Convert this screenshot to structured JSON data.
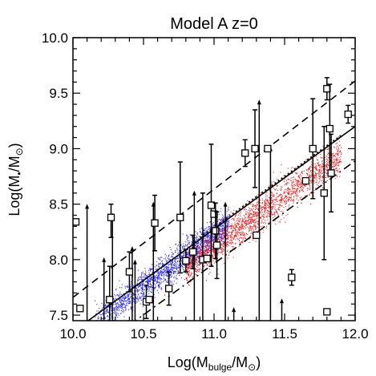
{
  "chart_data": {
    "type": "scatter",
    "title": "Model A z=0",
    "xlabel": {
      "main": "Log(M",
      "sub": "bulge",
      "mid": "/M",
      "sun": "⊙",
      "end": ")"
    },
    "ylabel": {
      "main": "Log(M",
      "sub": "•",
      "mid": "/M",
      "sun": "⊙",
      "end": ")"
    },
    "xlim": [
      10.0,
      12.0
    ],
    "ylim": [
      7.45,
      10.0
    ],
    "xticks": [
      10.0,
      10.5,
      11.0,
      11.5,
      12.0
    ],
    "xtick_labels": [
      "10.0",
      "10.5",
      "11.0",
      "11.5",
      "12.0"
    ],
    "yticks": [
      7.5,
      8.0,
      8.5,
      9.0,
      9.5,
      10.0
    ],
    "ytick_labels": [
      "7.5",
      "8.0",
      "8.5",
      "9.0",
      "9.5",
      "10.0"
    ],
    "colors": {
      "blue": "#2a2af0",
      "red": "#f01e1e",
      "black": "#000000"
    },
    "model_clouds": [
      {
        "color": "blue",
        "x_range": [
          10.15,
          11.1
        ],
        "relation": {
          "slope": 0.92,
          "intercept_at_10": 7.3
        },
        "scatter": 0.07
      },
      {
        "color": "red",
        "x_range": [
          10.8,
          11.9
        ],
        "relation": {
          "slope": 0.92,
          "intercept_at_10": 7.2
        },
        "scatter": 0.08
      }
    ],
    "fit_lines": [
      {
        "style": "solid",
        "x": [
          10.0,
          12.0
        ],
        "y": [
          7.35,
          9.2
        ]
      },
      {
        "style": "dashed",
        "x": [
          10.0,
          12.0
        ],
        "y": [
          7.66,
          9.61
        ]
      },
      {
        "style": "dash-dot",
        "x": [
          10.0,
          12.0
        ],
        "y": [
          7.04,
          8.89
        ]
      },
      {
        "style": "dotted",
        "x": [
          10.9,
          11.9
        ],
        "y": [
          8.2,
          9.12
        ]
      }
    ],
    "observed_points": [
      {
        "x": 10.02,
        "y": 8.34
      },
      {
        "x": 10.05,
        "y": 7.56
      },
      {
        "x": 10.27,
        "y": 8.38,
        "err": [
          0.18,
          0.12
        ]
      },
      {
        "x": 10.26,
        "y": 7.64,
        "err": [
          0.2,
          0.3
        ]
      },
      {
        "x": 10.4,
        "y": 7.89,
        "err": [
          0.18,
          0.18
        ]
      },
      {
        "x": 10.52,
        "y": 7.62,
        "err": [
          0.15,
          0.15
        ]
      },
      {
        "x": 10.54,
        "y": 7.64
      },
      {
        "x": 10.58,
        "y": 8.33,
        "err": [
          0.25,
          0.25
        ]
      },
      {
        "x": 10.68,
        "y": 7.74,
        "err": [
          0.15,
          0.15
        ]
      },
      {
        "x": 10.76,
        "y": 8.38,
        "err": [
          0.5,
          0.5
        ]
      },
      {
        "x": 10.8,
        "y": 7.99,
        "err": [
          0.1,
          0.1
        ]
      },
      {
        "x": 10.85,
        "y": 8.07,
        "err": [
          0.15,
          0.15
        ]
      },
      {
        "x": 10.92,
        "y": 8.0,
        "err": [
          0.6,
          0.6
        ]
      },
      {
        "x": 10.95,
        "y": 8.01
      },
      {
        "x": 10.98,
        "y": 8.49,
        "err": [
          0.55,
          0.55
        ]
      },
      {
        "x": 11.0,
        "y": 8.41
      },
      {
        "x": 11.01,
        "y": 8.26,
        "err": [
          0.25,
          0.25
        ]
      },
      {
        "x": 11.02,
        "y": 8.13,
        "err": [
          0.3,
          0.3
        ]
      },
      {
        "x": 11.22,
        "y": 8.96,
        "err": [
          0.12,
          0.12
        ]
      },
      {
        "x": 11.29,
        "y": 9.0,
        "err": [
          0.35,
          0.35
        ]
      },
      {
        "x": 11.3,
        "y": 8.22
      },
      {
        "x": 11.38,
        "y": 9.0
      },
      {
        "x": 11.55,
        "y": 7.84,
        "err": [
          0.07,
          0.07
        ]
      },
      {
        "x": 11.65,
        "y": 8.71
      },
      {
        "x": 11.7,
        "y": 9.0,
        "err": [
          0.45,
          0.45
        ]
      },
      {
        "x": 11.78,
        "y": 8.6,
        "err": [
          0.6,
          0.6
        ]
      },
      {
        "x": 11.8,
        "y": 9.54,
        "err": [
          0.1,
          0.1
        ]
      },
      {
        "x": 11.82,
        "y": 9.18,
        "err": [
          0.4,
          0.4
        ]
      },
      {
        "x": 11.83,
        "y": 8.78,
        "err": [
          0.35,
          0.35
        ]
      },
      {
        "x": 11.8,
        "y": 7.53
      },
      {
        "x": 11.95,
        "y": 9.31,
        "err": [
          0.08,
          0.08
        ]
      }
    ],
    "upper_limits": [
      {
        "x": 10.1,
        "y": 8.48,
        "down_to": 7.45
      },
      {
        "x": 10.22,
        "y": 8.0,
        "down_to": 7.45
      },
      {
        "x": 10.28,
        "y": 8.4,
        "down_to": 7.45
      },
      {
        "x": 10.42,
        "y": 8.1,
        "down_to": 7.45
      },
      {
        "x": 10.44,
        "y": 7.98,
        "down_to": 7.45
      },
      {
        "x": 10.57,
        "y": 8.5,
        "down_to": 7.45
      },
      {
        "x": 10.86,
        "y": 8.6,
        "down_to": 7.45
      },
      {
        "x": 11.08,
        "y": 8.5,
        "down_to": 7.45
      },
      {
        "x": 11.14,
        "y": 7.55,
        "down_to": 7.45
      },
      {
        "x": 11.32,
        "y": 9.42,
        "down_to": 7.45
      },
      {
        "x": 11.4,
        "y": 9.0,
        "down_to": 7.45
      },
      {
        "x": 11.48,
        "y": 7.63,
        "down_to": 7.45
      }
    ]
  }
}
